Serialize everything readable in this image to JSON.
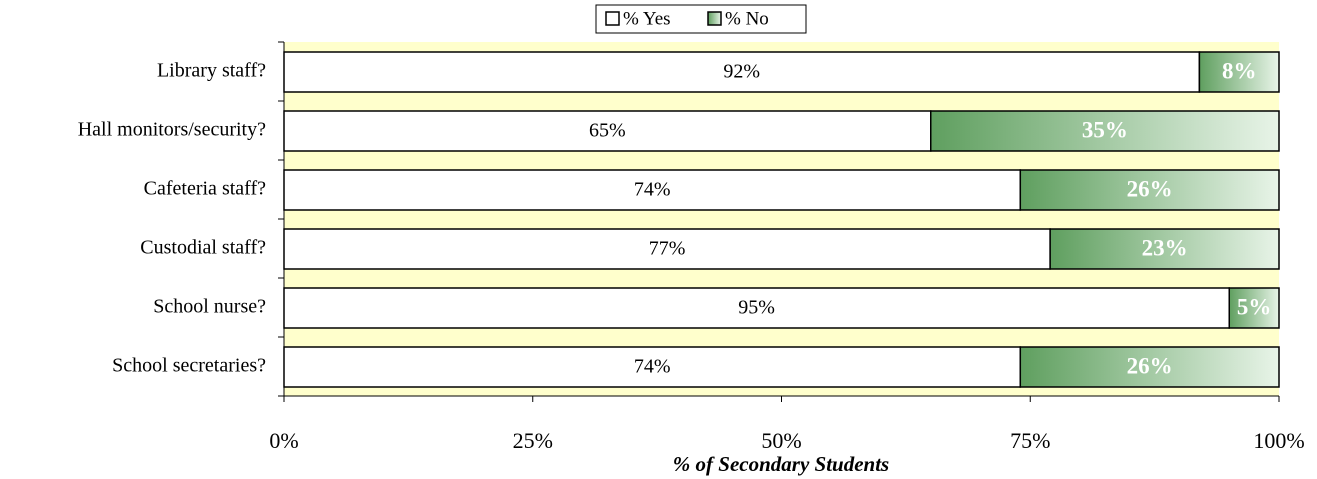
{
  "chart_data": {
    "type": "stacked-barh",
    "categories": [
      "Library staff?",
      "Hall monitors/security?",
      "Cafeteria staff?",
      "Custodial staff?",
      "School nurse?",
      "School secretaries?"
    ],
    "series": [
      {
        "name": "% Yes",
        "color": "#ffffff",
        "values": [
          92,
          65,
          74,
          77,
          95,
          74
        ],
        "value_labels": [
          "92%",
          "65%",
          "74%",
          "77%",
          "95%",
          "74%"
        ]
      },
      {
        "name": "% No",
        "color": "#5f9f5f",
        "values": [
          8,
          35,
          26,
          23,
          5,
          26
        ],
        "value_labels": [
          "8%",
          "35%",
          "26%",
          "23%",
          "5%",
          "26%"
        ]
      }
    ],
    "xlim": [
      0,
      100
    ],
    "xticks": [
      {
        "value": 0,
        "label": "0%"
      },
      {
        "value": 25,
        "label": "25%"
      },
      {
        "value": 50,
        "label": "50%"
      },
      {
        "value": 75,
        "label": "75%"
      },
      {
        "value": 100,
        "label": "100%"
      }
    ],
    "xlabel": "% of Secondary Students",
    "background": "#ffffcc",
    "legend": "top"
  }
}
